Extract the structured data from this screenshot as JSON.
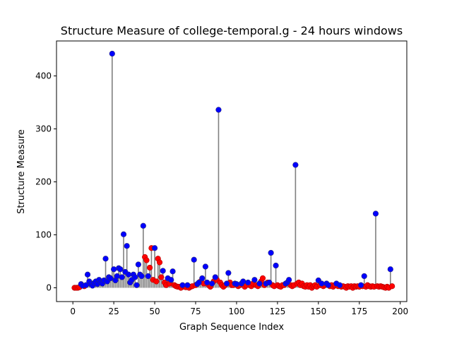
{
  "chart_data": {
    "type": "stem-scatter",
    "title": "Structure Measure of college-temporal.g - 24 hours windows",
    "xlabel": "Graph Sequence Index",
    "ylabel": "Structure Measure",
    "xlim": [
      -10,
      204
    ],
    "ylim": [
      -26,
      466
    ],
    "xticks": [
      0,
      25,
      50,
      75,
      100,
      125,
      150,
      175,
      200
    ],
    "yticks": [
      0,
      100,
      200,
      300,
      400
    ],
    "grid": false,
    "colors": {
      "stem": "#808080",
      "blue": "#0000ff",
      "red": "#ff0000",
      "marker_edge": "#2a2a7a"
    },
    "points": [
      [
        1,
        0,
        "red"
      ],
      [
        2,
        0,
        "red"
      ],
      [
        3,
        0,
        "red"
      ],
      [
        4,
        1,
        "red"
      ],
      [
        5,
        7,
        "blue"
      ],
      [
        6,
        4,
        "blue"
      ],
      [
        7,
        3,
        "red"
      ],
      [
        8,
        5,
        "blue"
      ],
      [
        9,
        25,
        "blue"
      ],
      [
        10,
        12,
        "blue"
      ],
      [
        11,
        7,
        "blue"
      ],
      [
        12,
        4,
        "blue"
      ],
      [
        13,
        9,
        "blue"
      ],
      [
        14,
        12,
        "blue"
      ],
      [
        15,
        7,
        "blue"
      ],
      [
        16,
        15,
        "blue"
      ],
      [
        17,
        10,
        "blue"
      ],
      [
        18,
        8,
        "blue"
      ],
      [
        19,
        14,
        "blue"
      ],
      [
        20,
        55,
        "blue"
      ],
      [
        21,
        12,
        "blue"
      ],
      [
        22,
        20,
        "blue"
      ],
      [
        23,
        18,
        "blue"
      ],
      [
        24,
        442,
        "blue"
      ],
      [
        25,
        35,
        "blue"
      ],
      [
        26,
        14,
        "blue"
      ],
      [
        27,
        22,
        "blue"
      ],
      [
        28,
        37,
        "blue"
      ],
      [
        29,
        35,
        "blue"
      ],
      [
        30,
        20,
        "blue"
      ],
      [
        31,
        101,
        "blue"
      ],
      [
        32,
        30,
        "blue"
      ],
      [
        33,
        79,
        "blue"
      ],
      [
        34,
        25,
        "blue"
      ],
      [
        35,
        10,
        "blue"
      ],
      [
        36,
        15,
        "blue"
      ],
      [
        37,
        25,
        "blue"
      ],
      [
        38,
        20,
        "blue"
      ],
      [
        39,
        5,
        "blue"
      ],
      [
        40,
        44,
        "blue"
      ],
      [
        41,
        25,
        "blue"
      ],
      [
        42,
        22,
        "blue"
      ],
      [
        43,
        117,
        "blue"
      ],
      [
        44,
        58,
        "red"
      ],
      [
        45,
        52,
        "red"
      ],
      [
        46,
        22,
        "blue"
      ],
      [
        47,
        38,
        "red"
      ],
      [
        48,
        75,
        "red"
      ],
      [
        49,
        15,
        "red"
      ],
      [
        50,
        75,
        "blue"
      ],
      [
        51,
        12,
        "red"
      ],
      [
        52,
        55,
        "red"
      ],
      [
        53,
        48,
        "red"
      ],
      [
        54,
        20,
        "red"
      ],
      [
        55,
        32,
        "blue"
      ],
      [
        56,
        10,
        "red"
      ],
      [
        57,
        5,
        "red"
      ],
      [
        58,
        18,
        "blue"
      ],
      [
        59,
        8,
        "red"
      ],
      [
        60,
        15,
        "blue"
      ],
      [
        61,
        31,
        "blue"
      ],
      [
        62,
        5,
        "red"
      ],
      [
        63,
        3,
        "red"
      ],
      [
        64,
        2,
        "red"
      ],
      [
        65,
        2,
        "red"
      ],
      [
        66,
        0,
        "red"
      ],
      [
        67,
        5,
        "blue"
      ],
      [
        68,
        2,
        "red"
      ],
      [
        69,
        1,
        "red"
      ],
      [
        70,
        5,
        "blue"
      ],
      [
        71,
        0,
        "red"
      ],
      [
        72,
        2,
        "red"
      ],
      [
        73,
        3,
        "red"
      ],
      [
        74,
        53,
        "blue"
      ],
      [
        75,
        5,
        "red"
      ],
      [
        76,
        7,
        "blue"
      ],
      [
        77,
        10,
        "blue"
      ],
      [
        78,
        12,
        "red"
      ],
      [
        79,
        18,
        "blue"
      ],
      [
        80,
        8,
        "red"
      ],
      [
        81,
        40,
        "blue"
      ],
      [
        82,
        10,
        "blue"
      ],
      [
        83,
        5,
        "red"
      ],
      [
        84,
        2,
        "red"
      ],
      [
        85,
        8,
        "blue"
      ],
      [
        86,
        12,
        "red"
      ],
      [
        87,
        20,
        "blue"
      ],
      [
        88,
        15,
        "red"
      ],
      [
        89,
        336,
        "blue"
      ],
      [
        90,
        10,
        "red"
      ],
      [
        91,
        5,
        "red"
      ],
      [
        92,
        2,
        "red"
      ],
      [
        93,
        5,
        "red"
      ],
      [
        94,
        8,
        "blue"
      ],
      [
        95,
        28,
        "blue"
      ],
      [
        96,
        10,
        "red"
      ],
      [
        97,
        5,
        "red"
      ],
      [
        98,
        5,
        "red"
      ],
      [
        99,
        8,
        "blue"
      ],
      [
        100,
        7,
        "blue"
      ],
      [
        101,
        3,
        "red"
      ],
      [
        102,
        5,
        "red"
      ],
      [
        103,
        8,
        "blue"
      ],
      [
        104,
        12,
        "blue"
      ],
      [
        105,
        2,
        "red"
      ],
      [
        106,
        5,
        "red"
      ],
      [
        107,
        10,
        "blue"
      ],
      [
        108,
        5,
        "red"
      ],
      [
        109,
        3,
        "red"
      ],
      [
        110,
        8,
        "red"
      ],
      [
        111,
        15,
        "blue"
      ],
      [
        112,
        5,
        "red"
      ],
      [
        113,
        3,
        "red"
      ],
      [
        114,
        8,
        "blue"
      ],
      [
        115,
        12,
        "red"
      ],
      [
        116,
        18,
        "red"
      ],
      [
        117,
        5,
        "red"
      ],
      [
        118,
        8,
        "blue"
      ],
      [
        119,
        10,
        "red"
      ],
      [
        120,
        10,
        "blue"
      ],
      [
        121,
        66,
        "blue"
      ],
      [
        122,
        5,
        "red"
      ],
      [
        123,
        3,
        "red"
      ],
      [
        124,
        42,
        "blue"
      ],
      [
        125,
        5,
        "red"
      ],
      [
        126,
        3,
        "red"
      ],
      [
        127,
        2,
        "red"
      ],
      [
        128,
        5,
        "red"
      ],
      [
        129,
        5,
        "red"
      ],
      [
        130,
        8,
        "blue"
      ],
      [
        131,
        10,
        "blue"
      ],
      [
        132,
        15,
        "blue"
      ],
      [
        133,
        5,
        "red"
      ],
      [
        134,
        3,
        "red"
      ],
      [
        135,
        5,
        "red"
      ],
      [
        136,
        232,
        "blue"
      ],
      [
        137,
        8,
        "red"
      ],
      [
        138,
        10,
        "red"
      ],
      [
        139,
        5,
        "red"
      ],
      [
        140,
        8,
        "red"
      ],
      [
        141,
        3,
        "red"
      ],
      [
        142,
        2,
        "red"
      ],
      [
        143,
        5,
        "red"
      ],
      [
        144,
        2,
        "red"
      ],
      [
        145,
        5,
        "red"
      ],
      [
        146,
        0,
        "red"
      ],
      [
        147,
        3,
        "red"
      ],
      [
        148,
        5,
        "red"
      ],
      [
        149,
        2,
        "red"
      ],
      [
        150,
        14,
        "blue"
      ],
      [
        151,
        5,
        "red"
      ],
      [
        152,
        8,
        "blue"
      ],
      [
        153,
        3,
        "red"
      ],
      [
        154,
        5,
        "red"
      ],
      [
        155,
        8,
        "blue"
      ],
      [
        156,
        5,
        "blue"
      ],
      [
        157,
        3,
        "red"
      ],
      [
        158,
        5,
        "red"
      ],
      [
        159,
        2,
        "red"
      ],
      [
        160,
        5,
        "red"
      ],
      [
        161,
        8,
        "blue"
      ],
      [
        162,
        3,
        "red"
      ],
      [
        163,
        5,
        "blue"
      ],
      [
        164,
        2,
        "red"
      ],
      [
        165,
        3,
        "red"
      ],
      [
        166,
        2,
        "red"
      ],
      [
        167,
        0,
        "red"
      ],
      [
        168,
        3,
        "red"
      ],
      [
        169,
        2,
        "red"
      ],
      [
        170,
        3,
        "red"
      ],
      [
        171,
        0,
        "red"
      ],
      [
        172,
        3,
        "red"
      ],
      [
        173,
        2,
        "red"
      ],
      [
        174,
        3,
        "red"
      ],
      [
        175,
        2,
        "red"
      ],
      [
        176,
        5,
        "blue"
      ],
      [
        177,
        3,
        "red"
      ],
      [
        178,
        22,
        "blue"
      ],
      [
        179,
        2,
        "red"
      ],
      [
        180,
        5,
        "red"
      ],
      [
        181,
        3,
        "red"
      ],
      [
        182,
        2,
        "red"
      ],
      [
        183,
        3,
        "red"
      ],
      [
        184,
        2,
        "red"
      ],
      [
        185,
        140,
        "blue"
      ],
      [
        186,
        3,
        "red"
      ],
      [
        187,
        2,
        "red"
      ],
      [
        188,
        3,
        "red"
      ],
      [
        189,
        2,
        "red"
      ],
      [
        190,
        1,
        "red"
      ],
      [
        191,
        0,
        "red"
      ],
      [
        192,
        2,
        "red"
      ],
      [
        193,
        0,
        "red"
      ],
      [
        194,
        35,
        "blue"
      ],
      [
        195,
        3,
        "red"
      ]
    ]
  }
}
